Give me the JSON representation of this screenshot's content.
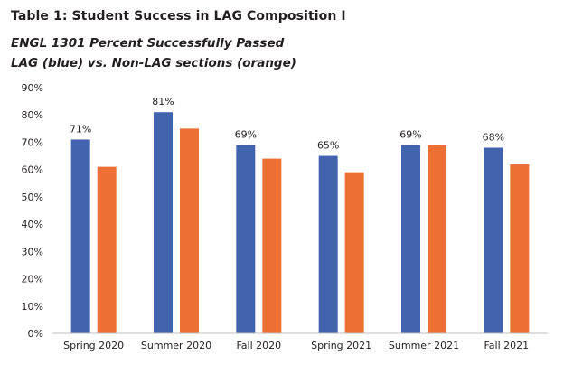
{
  "header": {
    "title": "Table 1: Student Success in LAG Composition I",
    "subtitle_line1": "ENGL 1301 Percent Successfully Passed",
    "subtitle_line2": "LAG (blue) vs. Non-LAG sections (orange)"
  },
  "colors": {
    "lag": "#4264ae",
    "non_lag": "#ec6f33",
    "axis": "#bfbfbf"
  },
  "chart_data": {
    "type": "bar",
    "categories": [
      "Spring 2020",
      "Summer 2020",
      "Fall 2020",
      "Spring 2021",
      "Summer 2021",
      "Fall 2021"
    ],
    "series": [
      {
        "values": [
          71,
          81,
          69,
          65,
          69,
          68
        ],
        "labels": [
          "71%",
          "81%",
          "69%",
          "65%",
          "69%",
          "68%"
        ]
      },
      {
        "values": [
          61,
          75,
          64,
          59,
          69,
          62
        ]
      }
    ],
    "ylim": [
      0,
      90
    ],
    "yticks": [
      0,
      10,
      20,
      30,
      40,
      50,
      60,
      70,
      80,
      90
    ],
    "ytick_labels": [
      "0%",
      "10%",
      "20%",
      "30%",
      "40%",
      "50%",
      "60%",
      "70%",
      "80%",
      "90%"
    ],
    "grid": false,
    "legend": "none"
  }
}
